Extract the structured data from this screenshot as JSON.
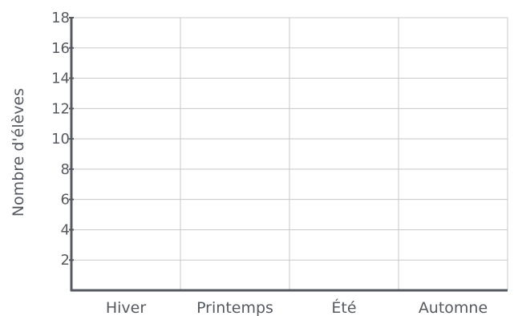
{
  "chart_data": {
    "type": "bar",
    "title": "",
    "xlabel": "",
    "ylabel": "Nombre d'élèves",
    "categories": [
      "Hiver",
      "Printemps",
      "Été",
      "Automne"
    ],
    "series": [],
    "ylim": [
      0,
      18
    ],
    "yticks": [
      2,
      4,
      6,
      8,
      10,
      12,
      14,
      16,
      18
    ],
    "grid": true,
    "legend": "none"
  },
  "colors": {
    "axis": "#555a60",
    "grid": "#c8c8c8",
    "text": "#555a60"
  }
}
